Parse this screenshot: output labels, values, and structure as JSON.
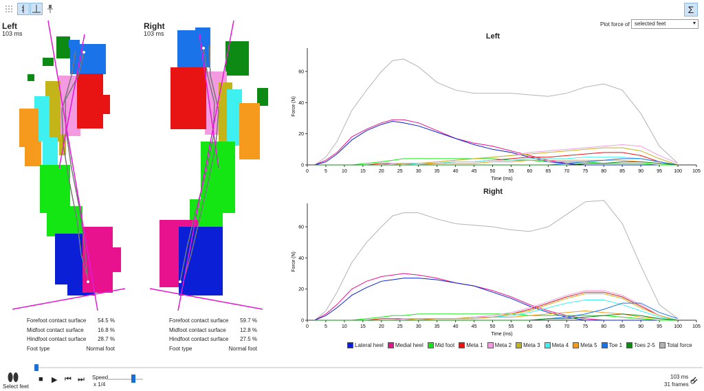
{
  "toolbar": {
    "grid_icon": "grid-icon",
    "line_icon": "line-curve-icon",
    "perp_icon": "perpendicular-icon",
    "pin_icon": "pin-icon"
  },
  "left_foot": {
    "title": "Left",
    "time": "103 ms",
    "stats": [
      {
        "label": "Forefoot contact surface",
        "value": "54.5 %"
      },
      {
        "label": "Midfoot contact surface",
        "value": "16.8 %"
      },
      {
        "label": "Hindfoot contact surface",
        "value": "28.7 %"
      },
      {
        "label": "Foot type",
        "value": "Normal foot"
      }
    ]
  },
  "right_foot": {
    "title": "Right",
    "time": "103 ms",
    "stats": [
      {
        "label": "Forefoot contact surface",
        "value": "59.7 %"
      },
      {
        "label": "Midfoot contact surface",
        "value": "12.8 %"
      },
      {
        "label": "Hindfoot contact surface",
        "value": "27.5 %"
      },
      {
        "label": "Foot type",
        "value": "Normal foot"
      }
    ]
  },
  "plot_force_label": "Plot force of",
  "plot_force_select": "selected feet",
  "sigma_label": "Σ",
  "colors": {
    "Lateral heel": "#0a1fd6",
    "Medial heel": "#e8128f",
    "Mid foot": "#14e614",
    "Meta 1": "#e81414",
    "Meta 2": "#f39ae0",
    "Meta 3": "#c2b419",
    "Meta 4": "#3ff0f0",
    "Meta 5": "#f59a1c",
    "Toe 1": "#1a73e8",
    "Toes 2-5": "#0c8a14",
    "Total force": "#b3b3b3"
  },
  "chart_data": [
    {
      "type": "line",
      "title": "Left",
      "xlabel": "Time (ms)",
      "ylabel": "Force (N)",
      "xlim": [
        0,
        105
      ],
      "ylim": [
        0,
        75
      ],
      "xticks": [
        0,
        5,
        10,
        15,
        20,
        25,
        30,
        35,
        40,
        45,
        50,
        55,
        60,
        65,
        70,
        75,
        80,
        85,
        90,
        95,
        100,
        105
      ],
      "yticks": [
        0,
        20,
        40,
        60
      ],
      "x": [
        2,
        5,
        8,
        12,
        16,
        20,
        23,
        26,
        30,
        35,
        40,
        45,
        50,
        55,
        60,
        65,
        70,
        75,
        80,
        85,
        90,
        95,
        100
      ],
      "series": [
        {
          "name": "Total force",
          "values": [
            0,
            5,
            15,
            35,
            48,
            60,
            67,
            68,
            63,
            53,
            48,
            46,
            46,
            46,
            45,
            44,
            46,
            50,
            52,
            48,
            33,
            12,
            1
          ]
        },
        {
          "name": "Medial heel",
          "values": [
            0,
            3,
            8,
            18,
            23,
            27,
            29,
            29,
            27,
            22,
            17,
            14,
            12,
            9,
            6,
            3,
            1,
            0,
            0,
            0,
            0,
            0,
            0
          ]
        },
        {
          "name": "Lateral heel",
          "values": [
            0,
            2,
            7,
            16,
            22,
            26,
            28,
            27,
            25,
            21,
            17,
            13,
            10,
            8,
            5,
            2,
            1,
            0,
            0,
            0,
            0,
            0,
            0
          ]
        },
        {
          "name": "Mid foot",
          "values": [
            0,
            0,
            0,
            0,
            1,
            2,
            3,
            4,
            4,
            4,
            4,
            4,
            4,
            3,
            3,
            2,
            2,
            2,
            1,
            1,
            1,
            0,
            0
          ]
        },
        {
          "name": "Meta 1",
          "values": [
            0,
            0,
            0,
            0,
            0,
            1,
            1,
            1,
            1,
            1,
            2,
            2,
            3,
            4,
            5,
            5,
            6,
            7,
            8,
            8,
            6,
            2,
            0
          ]
        },
        {
          "name": "Meta 2",
          "values": [
            0,
            0,
            0,
            0,
            0,
            0,
            1,
            1,
            1,
            2,
            3,
            4,
            5,
            6,
            8,
            9,
            10,
            11,
            12,
            13,
            12,
            6,
            1
          ]
        },
        {
          "name": "Meta 3",
          "values": [
            0,
            0,
            0,
            0,
            0,
            0,
            0,
            1,
            1,
            2,
            3,
            4,
            5,
            6,
            7,
            8,
            9,
            10,
            11,
            11,
            9,
            4,
            0
          ]
        },
        {
          "name": "Meta 4",
          "values": [
            0,
            0,
            0,
            0,
            0,
            0,
            0,
            0,
            1,
            1,
            2,
            2,
            3,
            3,
            4,
            4,
            4,
            5,
            5,
            5,
            4,
            2,
            0
          ]
        },
        {
          "name": "Meta 5",
          "values": [
            0,
            0,
            0,
            0,
            0,
            0,
            0,
            0,
            0,
            1,
            1,
            1,
            2,
            2,
            3,
            3,
            3,
            3,
            3,
            3,
            2,
            1,
            0
          ]
        },
        {
          "name": "Toe 1",
          "values": [
            0,
            0,
            0,
            0,
            0,
            0,
            0,
            0,
            0,
            0,
            0,
            0,
            0,
            0,
            0,
            0,
            1,
            2,
            3,
            4,
            4,
            2,
            0
          ]
        },
        {
          "name": "Toes 2-5",
          "values": [
            0,
            0,
            0,
            0,
            0,
            0,
            0,
            0,
            0,
            0,
            0,
            0,
            0,
            0,
            0,
            0,
            0,
            1,
            1,
            2,
            2,
            1,
            0
          ]
        }
      ]
    },
    {
      "type": "line",
      "title": "Right",
      "xlabel": "Time (ms)",
      "ylabel": "Force (N)",
      "xlim": [
        0,
        105
      ],
      "ylim": [
        0,
        75
      ],
      "xticks": [
        0,
        5,
        10,
        15,
        20,
        25,
        30,
        35,
        40,
        45,
        50,
        55,
        60,
        65,
        70,
        75,
        80,
        85,
        90,
        95,
        100,
        105
      ],
      "yticks": [
        0,
        20,
        40,
        60
      ],
      "x": [
        2,
        5,
        8,
        12,
        16,
        20,
        23,
        26,
        30,
        35,
        40,
        45,
        50,
        55,
        60,
        65,
        70,
        75,
        80,
        85,
        90,
        95,
        100
      ],
      "series": [
        {
          "name": "Total force",
          "values": [
            0,
            6,
            18,
            37,
            50,
            60,
            67,
            69,
            69,
            65,
            62,
            61,
            60,
            58,
            57,
            60,
            68,
            76,
            77,
            62,
            35,
            10,
            1
          ]
        },
        {
          "name": "Medial heel",
          "values": [
            0,
            4,
            10,
            20,
            25,
            28,
            29,
            30,
            29,
            27,
            24,
            22,
            19,
            15,
            10,
            6,
            3,
            1,
            0,
            0,
            0,
            0,
            0
          ]
        },
        {
          "name": "Lateral heel",
          "values": [
            0,
            3,
            8,
            16,
            21,
            25,
            26,
            27,
            27,
            26,
            24,
            22,
            18,
            14,
            9,
            5,
            2,
            0,
            0,
            0,
            0,
            0,
            0
          ]
        },
        {
          "name": "Mid foot",
          "values": [
            0,
            0,
            0,
            0,
            1,
            2,
            3,
            3,
            4,
            4,
            4,
            4,
            4,
            4,
            3,
            3,
            3,
            3,
            3,
            2,
            1,
            0,
            0
          ]
        },
        {
          "name": "Meta 1",
          "values": [
            0,
            0,
            0,
            0,
            0,
            1,
            1,
            1,
            1,
            1,
            1,
            2,
            2,
            4,
            7,
            11,
            15,
            18,
            18,
            15,
            9,
            3,
            0
          ]
        },
        {
          "name": "Meta 2",
          "values": [
            0,
            0,
            0,
            0,
            0,
            0,
            0,
            1,
            1,
            1,
            1,
            2,
            3,
            5,
            8,
            12,
            16,
            19,
            19,
            16,
            10,
            3,
            0
          ]
        },
        {
          "name": "Meta 3",
          "values": [
            0,
            0,
            0,
            0,
            0,
            0,
            0,
            0,
            1,
            1,
            1,
            2,
            2,
            4,
            6,
            10,
            14,
            17,
            17,
            14,
            8,
            3,
            0
          ]
        },
        {
          "name": "Meta 4",
          "values": [
            0,
            0,
            0,
            0,
            0,
            0,
            0,
            0,
            0,
            1,
            1,
            1,
            2,
            3,
            5,
            8,
            11,
            13,
            13,
            10,
            6,
            2,
            0
          ]
        },
        {
          "name": "Meta 5",
          "values": [
            0,
            0,
            0,
            0,
            0,
            0,
            0,
            0,
            0,
            1,
            1,
            1,
            2,
            2,
            3,
            4,
            5,
            6,
            5,
            4,
            2,
            1,
            0
          ]
        },
        {
          "name": "Toe 1",
          "values": [
            0,
            0,
            0,
            0,
            0,
            0,
            0,
            0,
            0,
            0,
            0,
            0,
            0,
            0,
            0,
            1,
            2,
            4,
            7,
            11,
            11,
            5,
            1
          ]
        },
        {
          "name": "Toes 2-5",
          "values": [
            0,
            0,
            0,
            0,
            0,
            0,
            0,
            0,
            0,
            0,
            0,
            0,
            0,
            0,
            0,
            1,
            1,
            2,
            3,
            4,
            3,
            1,
            0
          ]
        }
      ]
    }
  ],
  "legend": [
    "Lateral heel",
    "Medial heel",
    "Mid foot",
    "Meta 1",
    "Meta 2",
    "Meta 3",
    "Meta 4",
    "Meta 5",
    "Toe 1",
    "Toes 2-5",
    "Total force"
  ],
  "playback": {
    "select_feet_label": "Select feet",
    "speed_label": "Speed",
    "speed_value": "x 1/4",
    "time_readout": "103 ms",
    "frames_readout": "31 frames",
    "timeline_progress": 0.0
  }
}
